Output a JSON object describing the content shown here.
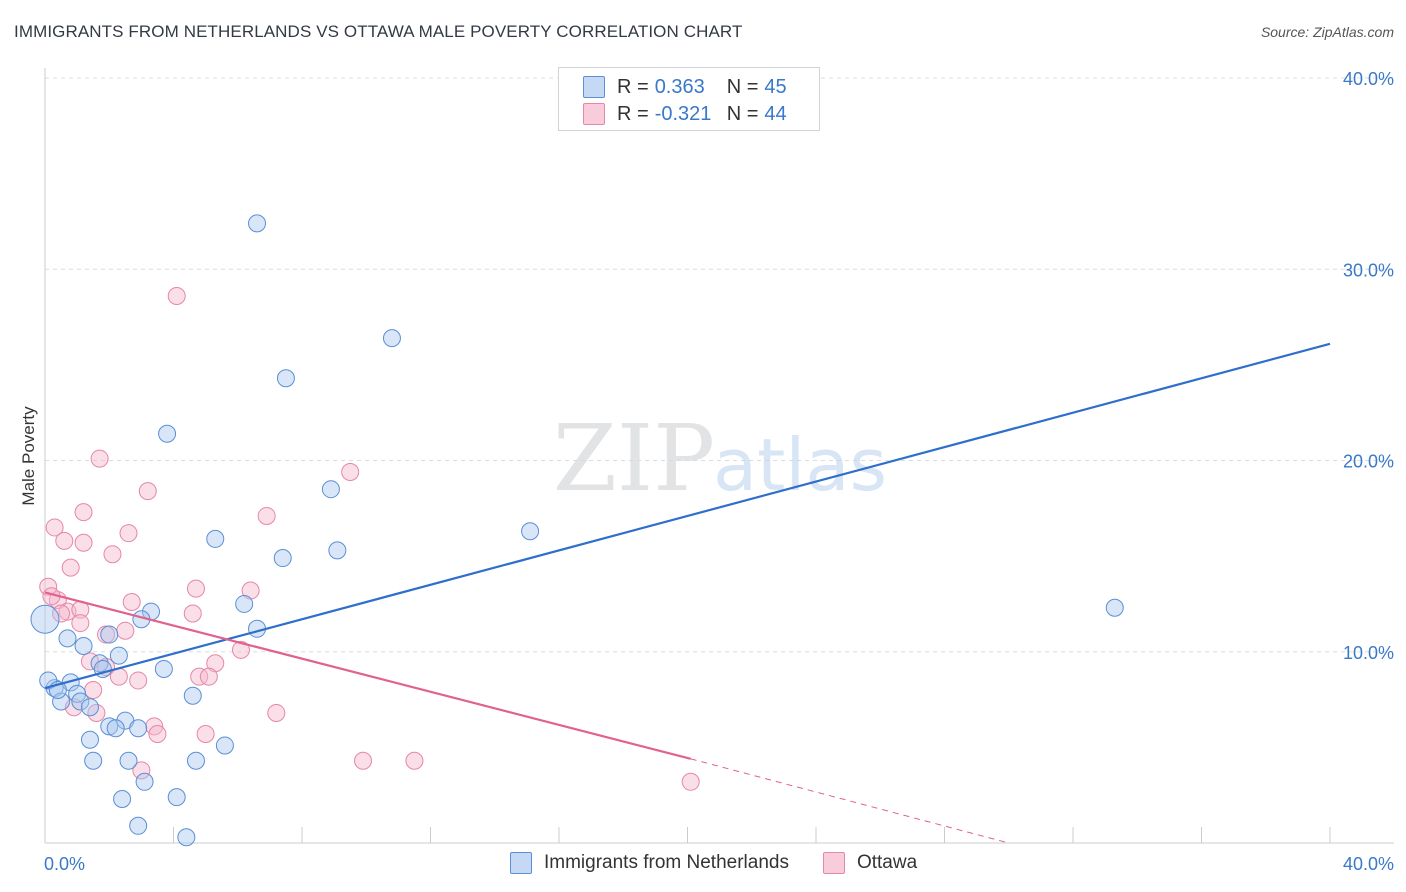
{
  "header": {
    "title": "IMMIGRANTS FROM NETHERLANDS VS OTTAWA MALE POVERTY CORRELATION CHART",
    "source": "Source: ZipAtlas.com"
  },
  "legend": {
    "r_label": "R =",
    "n_label": "N =",
    "series": [
      {
        "r": "0.363",
        "n": "45"
      },
      {
        "r": "-0.321",
        "n": "44"
      }
    ]
  },
  "colors": {
    "blue_fill": "#a9c7ef",
    "blue_stroke": "#5b8fd6",
    "blue_line": "#2f6fcc",
    "pink_fill": "#f5b8cc",
    "pink_stroke": "#e687a8",
    "pink_line": "#e0628f",
    "tick_label": "#3a78c9",
    "grid": "#d9dde2"
  },
  "watermark": {
    "zip": "ZIP",
    "atlas": "atlas"
  },
  "chart_data": {
    "type": "scatter",
    "title": "IMMIGRANTS FROM NETHERLANDS VS OTTAWA MALE POVERTY CORRELATION CHART",
    "xlabel": "",
    "ylabel": "Male Poverty",
    "xlim": [
      0,
      40
    ],
    "ylim": [
      0,
      40
    ],
    "x_tick_labels": [
      "0.0%",
      "40.0%"
    ],
    "y_ticks": [
      10,
      20,
      30,
      40
    ],
    "y_tick_labels": [
      "10.0%",
      "20.0%",
      "30.0%",
      "40.0%"
    ],
    "series": [
      {
        "name": "Immigrants from Netherlands",
        "color": "blue",
        "points": [
          [
            6.6,
            32.4
          ],
          [
            10.8,
            26.4
          ],
          [
            7.5,
            24.3
          ],
          [
            3.8,
            21.4
          ],
          [
            8.9,
            18.5
          ],
          [
            15.1,
            16.3
          ],
          [
            5.3,
            15.9
          ],
          [
            9.1,
            15.3
          ],
          [
            7.4,
            14.9
          ],
          [
            6.2,
            12.5
          ],
          [
            33.3,
            12.3
          ],
          [
            3.3,
            12.1
          ],
          [
            3.0,
            11.7
          ],
          [
            6.6,
            11.2
          ],
          [
            0.7,
            10.7
          ],
          [
            2.0,
            10.9
          ],
          [
            1.2,
            10.3
          ],
          [
            2.3,
            9.8
          ],
          [
            1.7,
            9.4
          ],
          [
            1.8,
            9.1
          ],
          [
            3.7,
            9.1
          ],
          [
            4.6,
            7.7
          ],
          [
            0.0,
            11.7
          ],
          [
            0.3,
            8.1
          ],
          [
            0.8,
            8.4
          ],
          [
            1.0,
            7.8
          ],
          [
            0.5,
            7.4
          ],
          [
            1.1,
            7.4
          ],
          [
            1.4,
            7.1
          ],
          [
            2.5,
            6.4
          ],
          [
            2.0,
            6.1
          ],
          [
            2.9,
            6.0
          ],
          [
            2.2,
            6.0
          ],
          [
            1.4,
            5.4
          ],
          [
            5.6,
            5.1
          ],
          [
            1.5,
            4.3
          ],
          [
            2.6,
            4.3
          ],
          [
            4.7,
            4.3
          ],
          [
            3.1,
            3.2
          ],
          [
            4.1,
            2.4
          ],
          [
            2.4,
            2.3
          ],
          [
            2.9,
            0.9
          ],
          [
            4.4,
            0.3
          ],
          [
            0.1,
            8.5
          ],
          [
            0.4,
            8.0
          ]
        ]
      },
      {
        "name": "Ottawa",
        "color": "pink",
        "points": [
          [
            4.1,
            28.6
          ],
          [
            1.7,
            20.1
          ],
          [
            9.5,
            19.4
          ],
          [
            3.2,
            18.4
          ],
          [
            1.2,
            17.3
          ],
          [
            6.9,
            17.1
          ],
          [
            0.3,
            16.5
          ],
          [
            2.6,
            16.2
          ],
          [
            0.6,
            15.8
          ],
          [
            1.2,
            15.7
          ],
          [
            2.1,
            15.1
          ],
          [
            0.8,
            14.4
          ],
          [
            0.1,
            13.4
          ],
          [
            4.7,
            13.3
          ],
          [
            6.4,
            13.2
          ],
          [
            0.4,
            12.7
          ],
          [
            2.7,
            12.6
          ],
          [
            0.7,
            12.1
          ],
          [
            0.5,
            12.0
          ],
          [
            1.1,
            12.2
          ],
          [
            4.6,
            12.0
          ],
          [
            2.5,
            11.1
          ],
          [
            1.9,
            10.9
          ],
          [
            6.1,
            10.1
          ],
          [
            5.3,
            9.4
          ],
          [
            1.4,
            9.5
          ],
          [
            1.9,
            9.2
          ],
          [
            4.8,
            8.7
          ],
          [
            2.3,
            8.7
          ],
          [
            5.1,
            8.7
          ],
          [
            2.9,
            8.5
          ],
          [
            1.5,
            8.0
          ],
          [
            0.9,
            7.1
          ],
          [
            1.6,
            6.8
          ],
          [
            7.2,
            6.8
          ],
          [
            3.4,
            6.1
          ],
          [
            3.5,
            5.7
          ],
          [
            5.0,
            5.7
          ],
          [
            9.9,
            4.3
          ],
          [
            11.5,
            4.3
          ],
          [
            3.0,
            3.8
          ],
          [
            20.1,
            3.2
          ],
          [
            1.1,
            11.5
          ],
          [
            0.2,
            12.9
          ]
        ]
      }
    ],
    "trendlines": [
      {
        "series": "Immigrants from Netherlands",
        "x": [
          0,
          40
        ],
        "y": [
          8.1,
          26.1
        ],
        "style": "solid"
      },
      {
        "series": "Ottawa",
        "x": [
          0,
          20.1
        ],
        "y": [
          13.1,
          4.4
        ],
        "style": "solid"
      },
      {
        "series": "Ottawa",
        "x": [
          20.1,
          30.0
        ],
        "y": [
          4.4,
          0.0
        ],
        "style": "dashed"
      }
    ]
  }
}
